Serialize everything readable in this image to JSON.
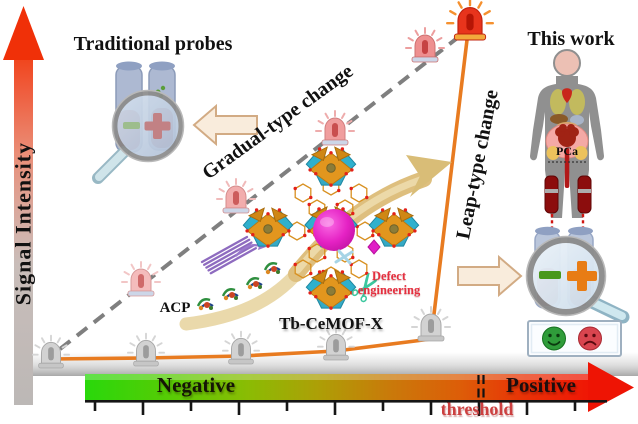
{
  "figure": {
    "y_axis_label": "Signal Intensity",
    "x_axis": {
      "negative": "Negative",
      "positive": "Positive",
      "threshold": "threshold"
    },
    "traditional": {
      "title": "Traditional probes",
      "change_label": "Gradual-type change"
    },
    "this_work": {
      "title": "This work",
      "change_label": "Leap-type change",
      "disease_label": "PCa"
    },
    "mechanism": {
      "enzyme": "ACP",
      "material": "Tb-CeMOF-X",
      "defect_line1": "Defect",
      "defect_line2": "engineering"
    },
    "icons": {
      "scissors_glyph": "✂",
      "siren": "alarm-siren",
      "magnifier": "magnifying-glass",
      "smiley": "green-smiley-face",
      "frowny": "red-sad-face"
    },
    "colors": {
      "leap_curve_orange": "#e87b20",
      "gradual_dash_gray": "#7f7f7f",
      "negative_green": "#29d80b",
      "positive_red": "#ee1404",
      "threshold_red": "#cc4040",
      "defect_red": "#e52f3f",
      "mof_sphere_magenta": "#d916b6",
      "mof_node_orange": "#e2971d",
      "mof_node_teal": "#2fb0cd"
    }
  }
}
